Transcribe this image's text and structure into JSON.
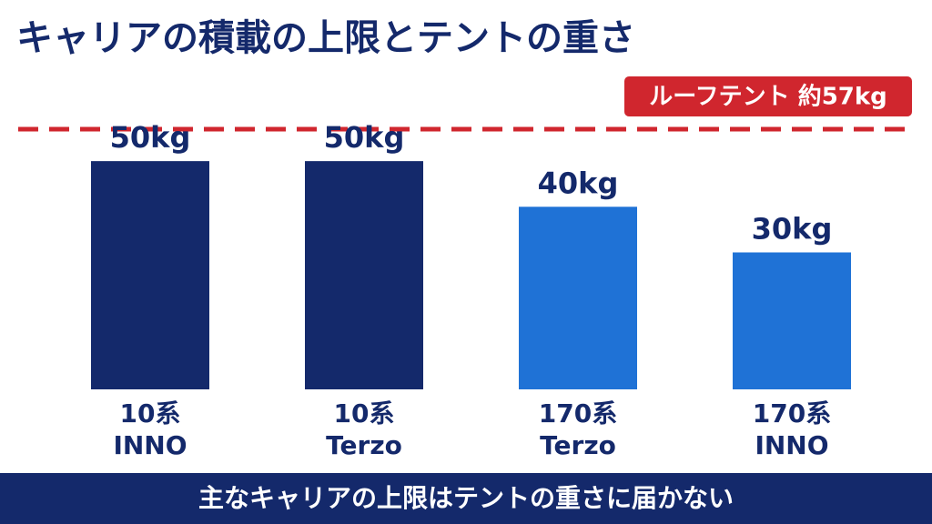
{
  "chart_data": {
    "type": "bar",
    "title": "キャリアの積載の上限とテントの重さ",
    "categories": [
      [
        "10系",
        "INNO"
      ],
      [
        "10系",
        "Terzo"
      ],
      [
        "170系",
        "Terzo"
      ],
      [
        "170系",
        "INNO"
      ]
    ],
    "values": [
      50,
      50,
      40,
      30
    ],
    "value_labels": [
      "50kg",
      "50kg",
      "40kg",
      "30kg"
    ],
    "colors": [
      "#14296b",
      "#14296b",
      "#1f72d6",
      "#1f72d6"
    ],
    "reference": {
      "label": "ルーフテント 約57kg",
      "value": 57,
      "color": "#d0262e"
    },
    "footer": "主なキャリアの上限はテントの重さに届かない"
  }
}
